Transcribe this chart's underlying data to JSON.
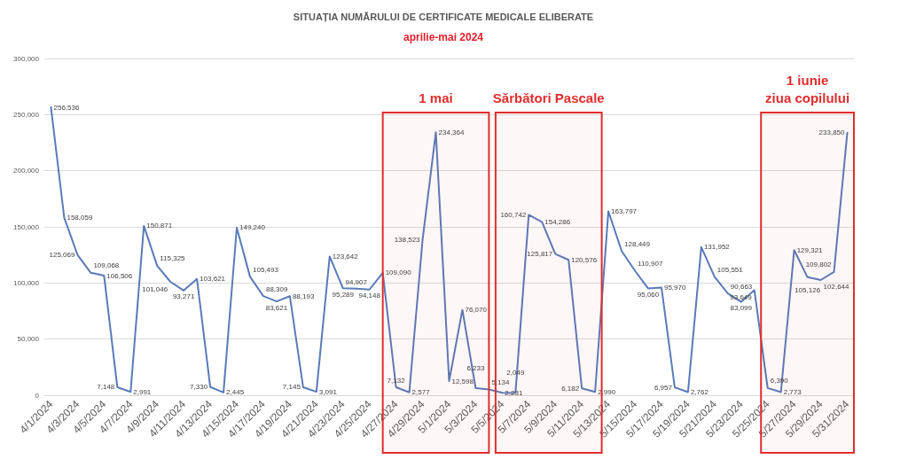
{
  "chart_data": {
    "type": "line",
    "title": "SITUAȚIA NUMĂRULUI DE CERTIFICATE MEDICALE ELIBERATE",
    "subtitle": "aprilie-mai 2024",
    "x": [
      "2024-04-01",
      "2024-04-02",
      "2024-04-03",
      "2024-04-04",
      "2024-04-05",
      "2024-04-06",
      "2024-04-07",
      "2024-04-08",
      "2024-04-09",
      "2024-04-10",
      "2024-04-11",
      "2024-04-12",
      "2024-04-13",
      "2024-04-14",
      "2024-04-15",
      "2024-04-16",
      "2024-04-17",
      "2024-04-18",
      "2024-04-19",
      "2024-04-20",
      "2024-04-21",
      "2024-04-22",
      "2024-04-23",
      "2024-04-24",
      "2024-04-25",
      "2024-04-26",
      "2024-04-27",
      "2024-04-28",
      "2024-04-29",
      "2024-04-30",
      "2024-05-01",
      "2024-05-02",
      "2024-05-03",
      "2024-05-04",
      "2024-05-05",
      "2024-05-06",
      "2024-05-07",
      "2024-05-08",
      "2024-05-09",
      "2024-05-10",
      "2024-05-11",
      "2024-05-12",
      "2024-05-13",
      "2024-05-14",
      "2024-05-15",
      "2024-05-16",
      "2024-05-17",
      "2024-05-18",
      "2024-05-19",
      "2024-05-20",
      "2024-05-21",
      "2024-05-22",
      "2024-05-23",
      "2024-05-24",
      "2024-05-25",
      "2024-05-26",
      "2024-05-27",
      "2024-05-28",
      "2024-05-29",
      "2024-05-30",
      "2024-05-31"
    ],
    "values": [
      256536,
      158059,
      125069,
      109068,
      106506,
      7148,
      2991,
      150871,
      115325,
      101046,
      93271,
      103621,
      7330,
      2445,
      149240,
      105493,
      88309,
      83621,
      88193,
      7145,
      3091,
      123642,
      95289,
      94907,
      94148,
      109090,
      7132,
      2577,
      138523,
      234364,
      12598,
      76070,
      6233,
      5134,
      2231,
      2049,
      160742,
      154286,
      125817,
      120576,
      6182,
      2990,
      163797,
      128449,
      110907,
      95060,
      95970,
      6957,
      2762,
      131952,
      105551,
      90663,
      83099,
      93649,
      6390,
      2773,
      129321,
      105126,
      102644,
      109802,
      233850
    ],
    "value_labels": [
      "256,536",
      "158,059",
      "125,069",
      "109,068",
      "106,506",
      "7,148",
      "2,991",
      "150,871",
      "115,325",
      "101,046",
      "93,271",
      "103,621",
      "7,330",
      "2,445",
      "149,240",
      "105,493",
      "88,309",
      "83,621",
      "88,193",
      "7,145",
      "3,091",
      "123,642",
      "95,289",
      "94,907",
      "94,148",
      "109,090",
      "7,132",
      "2,577",
      "138,523",
      "234,364",
      "12,598",
      "76,070",
      "6,233",
      "5,134",
      "2,231",
      "2,049",
      "160,742",
      "154,286",
      "125,817",
      "120,576",
      "6,182",
      "2,990",
      "163,797",
      "128,449",
      "110,907",
      "95,060",
      "95,970",
      "6,957",
      "2,762",
      "131,952",
      "105,551",
      "90,663",
      "83,099",
      "93,649",
      "6,390",
      "2,773",
      "129,321",
      "105,126",
      "102,644",
      "109,802",
      "233,850"
    ],
    "color": "#5a7ab8",
    "xlim": [
      "2024-03-31T12:00",
      "2024-05-31T12:00"
    ],
    "xticks": [
      {
        "value": "2024-04-01",
        "label": "4/1/2024"
      },
      {
        "value": "2024-04-03",
        "label": "4/3/2024"
      },
      {
        "value": "2024-04-05",
        "label": "4/5/2024"
      },
      {
        "value": "2024-04-07",
        "label": "4/7/2024"
      },
      {
        "value": "2024-04-09",
        "label": "4/9/2024"
      },
      {
        "value": "2024-04-11",
        "label": "4/11/2024"
      },
      {
        "value": "2024-04-13",
        "label": "4/13/2024"
      },
      {
        "value": "2024-04-15",
        "label": "4/15/2024"
      },
      {
        "value": "2024-04-17",
        "label": "4/17/2024"
      },
      {
        "value": "2024-04-19",
        "label": "4/19/2024"
      },
      {
        "value": "2024-04-21",
        "label": "4/21/2024"
      },
      {
        "value": "2024-04-23",
        "label": "4/23/2024"
      },
      {
        "value": "2024-04-25",
        "label": "4/25/2024"
      },
      {
        "value": "2024-04-27",
        "label": "4/27/2024"
      },
      {
        "value": "2024-04-29",
        "label": "4/29/2024"
      },
      {
        "value": "2024-05-01",
        "label": "5/1/2024"
      },
      {
        "value": "2024-05-03",
        "label": "5/3/2024"
      },
      {
        "value": "2024-05-05",
        "label": "5/5/2024"
      },
      {
        "value": "2024-05-07",
        "label": "5/7/2024"
      },
      {
        "value": "2024-05-09",
        "label": "5/9/2024"
      },
      {
        "value": "2024-05-11",
        "label": "5/11/2024"
      },
      {
        "value": "2024-05-13",
        "label": "5/13/2024"
      },
      {
        "value": "2024-05-15",
        "label": "5/15/2024"
      },
      {
        "value": "2024-05-17",
        "label": "5/17/2024"
      },
      {
        "value": "2024-05-19",
        "label": "5/19/2024"
      },
      {
        "value": "2024-05-21",
        "label": "5/21/2024"
      },
      {
        "value": "2024-05-23",
        "label": "5/23/2024"
      },
      {
        "value": "2024-05-25",
        "label": "5/25/2024"
      },
      {
        "value": "2024-05-27",
        "label": "5/27/2024"
      },
      {
        "value": "2024-05-29",
        "label": "5/29/2024"
      },
      {
        "value": "2024-05-31",
        "label": "5/31/2024"
      }
    ],
    "ylim": [
      0,
      300000
    ],
    "yticks": [
      0,
      {
        "value": 50000,
        "label": "50,000"
      },
      {
        "value": 100000,
        "label": "100,000"
      },
      {
        "value": 150000,
        "label": "150,000"
      },
      {
        "value": 200000,
        "label": "200,000"
      },
      {
        "value": 250000,
        "label": "250,000"
      },
      {
        "value": 300000,
        "label": "300,000"
      }
    ],
    "grid": "y",
    "marker": "none",
    "bands": [
      {
        "axis": "x",
        "from": "2024-04-26",
        "to": "2024-05-04",
        "label": "1 mai",
        "color": "#e02d2d"
      },
      {
        "axis": "x",
        "from": "2024-05-04T12:00",
        "to": "2024-05-12T12:00",
        "label": "Sărbători Pascale",
        "color": "#e02d2d"
      },
      {
        "axis": "x",
        "from": "2024-05-24T12:00",
        "to": "2024-05-31T12:00",
        "label": "1 iunie\nziua copilului",
        "color": "#e02d2d"
      }
    ]
  }
}
